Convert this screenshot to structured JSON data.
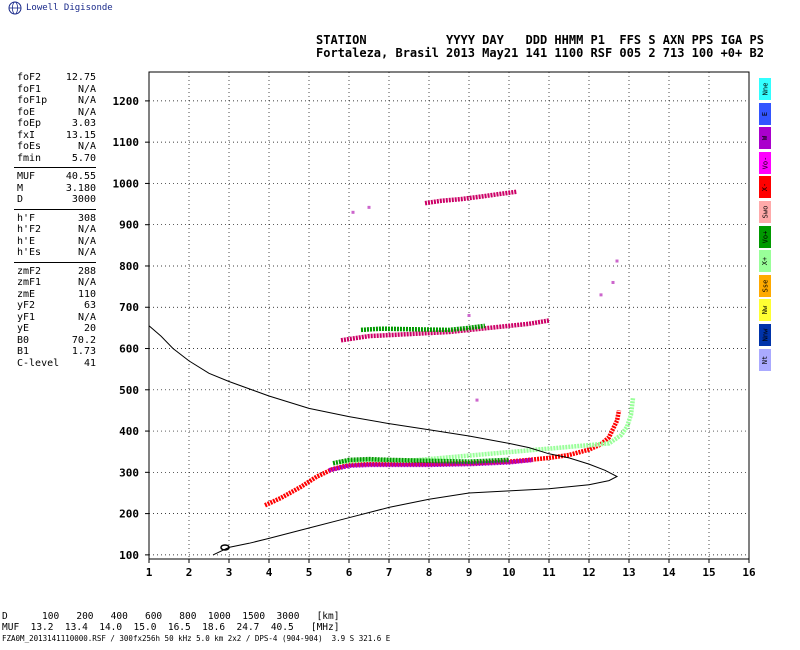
{
  "brand": "Lowell Digisonde",
  "header": {
    "line1": "STATION           YYYY DAY   DDD HHMM P1  FFS S AXN PPS IGA PS",
    "line2": "Fortaleza, Brasil 2013 May21 141 1100 RSF 005 2 713 100 +0+ B2"
  },
  "params": [
    [
      {
        "label": "foF2",
        "value": "12.75"
      },
      {
        "label": "foF1",
        "value": "N/A"
      },
      {
        "label": "foF1p",
        "value": "N/A"
      },
      {
        "label": "foE",
        "value": "N/A"
      },
      {
        "label": "foEp",
        "value": "3.03"
      },
      {
        "label": "fxI",
        "value": "13.15"
      },
      {
        "label": "foEs",
        "value": "N/A"
      },
      {
        "label": "fmin",
        "value": "5.70"
      }
    ],
    [
      {
        "label": "MUF",
        "value": "40.55"
      },
      {
        "label": "M",
        "value": "3.180"
      },
      {
        "label": "D",
        "value": "3000"
      }
    ],
    [
      {
        "label": "h'F",
        "value": "308"
      },
      {
        "label": "h'F2",
        "value": "N/A"
      },
      {
        "label": "h'E",
        "value": "N/A"
      },
      {
        "label": "h'Es",
        "value": "N/A"
      }
    ],
    [
      {
        "label": "zmF2",
        "value": "288"
      },
      {
        "label": "zmF1",
        "value": "N/A"
      },
      {
        "label": "zmE",
        "value": "110"
      },
      {
        "label": "yF2",
        "value": "63"
      },
      {
        "label": "yF1",
        "value": "N/A"
      },
      {
        "label": "yE",
        "value": "20"
      },
      {
        "label": "B0",
        "value": "70.2"
      },
      {
        "label": "B1",
        "value": "1.73"
      },
      {
        "label": "C-level",
        "value": "41"
      }
    ]
  ],
  "legend": [
    {
      "label": "Nne",
      "color": "#33ffff"
    },
    {
      "label": "E",
      "color": "#3355ff"
    },
    {
      "label": "W",
      "color": "#aa00cc"
    },
    {
      "label": "Vo-",
      "color": "#ff00ff"
    },
    {
      "label": "X-",
      "color": "#ff0000"
    },
    {
      "label": "Swo",
      "color": "#ffaaaa"
    },
    {
      "label": "Vo+",
      "color": "#009900"
    },
    {
      "label": "X+",
      "color": "#99ff99"
    },
    {
      "label": "Sse",
      "color": "#ffaa00"
    },
    {
      "label": "Nw",
      "color": "#ffff33"
    },
    {
      "label": "Nnw",
      "color": "#0033aa"
    },
    {
      "label": "Nt",
      "color": "#aaaaff"
    }
  ],
  "footer": {
    "line1": "D      100   200   400   600   800  1000  1500  3000   [km]",
    "line2": "MUF  13.2  13.4  14.0  15.0  16.5  18.6  24.7  40.5   [MHz]",
    "line3": "FZA0M_2013141110000.RSF / 300fx256h 50 kHz 5.0 km 2x2 / DPS-4 (904-904)  3.9 S 321.6 E"
  },
  "chart_data": {
    "type": "scatter",
    "xlim": [
      1,
      16
    ],
    "ylim": [
      90,
      1270
    ],
    "xticks": [
      1,
      2,
      3,
      4,
      5,
      6,
      7,
      8,
      9,
      10,
      11,
      12,
      13,
      14,
      15,
      16
    ],
    "yticks": [
      100,
      200,
      300,
      400,
      500,
      600,
      700,
      800,
      900,
      1000,
      1100,
      1200
    ],
    "grid": true,
    "profile": [
      [
        1.0,
        655
      ],
      [
        1.3,
        630
      ],
      [
        1.6,
        600
      ],
      [
        2.0,
        570
      ],
      [
        2.5,
        540
      ],
      [
        3.0,
        520
      ],
      [
        4.0,
        485
      ],
      [
        5.0,
        455
      ],
      [
        6.0,
        435
      ],
      [
        7.0,
        418
      ],
      [
        8.0,
        403
      ],
      [
        9.0,
        388
      ],
      [
        10.0,
        370
      ],
      [
        10.5,
        360
      ],
      [
        11.0,
        345
      ],
      [
        11.5,
        335
      ],
      [
        12.0,
        320
      ],
      [
        12.4,
        305
      ],
      [
        12.7,
        290
      ],
      [
        12.5,
        280
      ],
      [
        12.0,
        270
      ],
      [
        11.0,
        260
      ],
      [
        10.0,
        255
      ],
      [
        9.0,
        250
      ],
      [
        8.0,
        235
      ],
      [
        7.0,
        215
      ],
      [
        6.0,
        190
      ],
      [
        5.0,
        165
      ],
      [
        4.0,
        140
      ],
      [
        3.5,
        128
      ],
      [
        3.0,
        118
      ],
      [
        2.6,
        100
      ]
    ],
    "traces": [
      {
        "name": "F2 O-trace",
        "color": "#ff0000",
        "points": [
          [
            3.9,
            220
          ],
          [
            4.3,
            238
          ],
          [
            4.8,
            265
          ],
          [
            5.2,
            290
          ],
          [
            5.6,
            308
          ],
          [
            6.0,
            318
          ],
          [
            6.5,
            320
          ],
          [
            7.0,
            320
          ],
          [
            8.0,
            320
          ],
          [
            9.0,
            322
          ],
          [
            10.0,
            326
          ],
          [
            10.5,
            330
          ],
          [
            11.0,
            335
          ],
          [
            11.5,
            342
          ],
          [
            12.0,
            355
          ],
          [
            12.3,
            368
          ],
          [
            12.5,
            385
          ],
          [
            12.6,
            405
          ],
          [
            12.7,
            425
          ],
          [
            12.75,
            450
          ]
        ]
      },
      {
        "name": "F2 O-trace (purple)",
        "color": "#aa00cc",
        "points": [
          [
            5.5,
            305
          ],
          [
            6.0,
            316
          ],
          [
            6.5,
            318
          ],
          [
            7.0,
            318
          ],
          [
            8.0,
            318
          ],
          [
            9.0,
            320
          ],
          [
            10.0,
            324
          ],
          [
            10.6,
            330
          ]
        ]
      },
      {
        "name": "F2 X-trace",
        "color": "#99ff99",
        "points": [
          [
            5.8,
            325
          ],
          [
            6.5,
            330
          ],
          [
            7.5,
            328
          ],
          [
            12.5,
            370
          ],
          [
            12.8,
            390
          ],
          [
            12.95,
            410
          ],
          [
            13.05,
            440
          ],
          [
            13.1,
            480
          ]
        ]
      },
      {
        "name": "F2 (green)",
        "color": "#009900",
        "points": [
          [
            5.6,
            322
          ],
          [
            6.0,
            330
          ],
          [
            6.5,
            332
          ],
          [
            7.0,
            330
          ],
          [
            8.0,
            328
          ],
          [
            9.0,
            326
          ],
          [
            10.0,
            330
          ]
        ]
      },
      {
        "name": "Echo 2F",
        "color": "#cc0066",
        "points": [
          [
            5.8,
            620
          ],
          [
            6.5,
            630
          ],
          [
            7.5,
            635
          ],
          [
            8.5,
            640
          ],
          [
            9.5,
            650
          ],
          [
            10.5,
            660
          ],
          [
            11.0,
            668
          ]
        ]
      },
      {
        "name": "Echo 2F (green)",
        "color": "#009900",
        "points": [
          [
            6.3,
            645
          ],
          [
            6.8,
            648
          ],
          [
            8.5,
            645
          ],
          [
            9.0,
            650
          ],
          [
            9.4,
            655
          ]
        ]
      },
      {
        "name": "Echo 3F",
        "color": "#cc0066",
        "points": [
          [
            7.9,
            952
          ],
          [
            8.3,
            958
          ],
          [
            8.8,
            962
          ],
          [
            9.3,
            968
          ],
          [
            9.8,
            975
          ],
          [
            10.2,
            980
          ]
        ]
      },
      {
        "name": "Scatter",
        "color": "#cc66cc",
        "points": [
          [
            6.1,
            930
          ],
          [
            6.5,
            942
          ],
          [
            12.6,
            760
          ],
          [
            12.7,
            812
          ],
          [
            12.3,
            730
          ],
          [
            9.2,
            475
          ],
          [
            9.0,
            680
          ]
        ]
      }
    ],
    "hollow_marker": [
      2.9,
      118
    ]
  }
}
